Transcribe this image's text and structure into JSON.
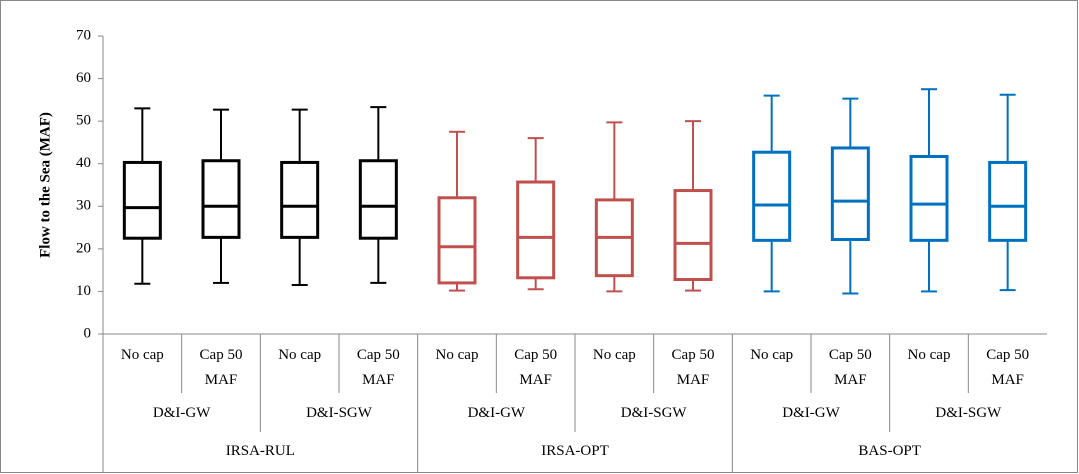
{
  "chart_data": {
    "type": "box",
    "y_label": "Flow to the Sea (MAF)",
    "ylim": [
      0,
      70
    ],
    "yticks": [
      0,
      10,
      20,
      30,
      40,
      50,
      60,
      70
    ],
    "categories": [
      "No cap",
      "Cap 50 MAF",
      "No cap",
      "Cap 50 MAF",
      "No cap",
      "Cap 50 MAF",
      "No cap",
      "Cap 50 MAF",
      "No cap",
      "Cap 50 MAF",
      "No cap",
      "Cap 50 MAF"
    ],
    "groups": [
      "D&I-GW",
      "D&I-SGW",
      "D&I-GW",
      "D&I-SGW",
      "D&I-GW",
      "D&I-SGW"
    ],
    "supergroups": [
      "IRSA-RUL",
      "IRSA-OPT",
      "BAS-OPT"
    ],
    "boxes": [
      {
        "min": 11.8,
        "q1": 22.5,
        "median": 29.7,
        "q3": 40.3,
        "max": 53,
        "color": "#000000"
      },
      {
        "min": 12,
        "q1": 22.7,
        "median": 30,
        "q3": 40.7,
        "max": 52.7,
        "color": "#000000"
      },
      {
        "min": 11.5,
        "q1": 22.7,
        "median": 30,
        "q3": 40.3,
        "max": 52.7,
        "color": "#000000"
      },
      {
        "min": 12,
        "q1": 22.5,
        "median": 30,
        "q3": 40.7,
        "max": 53.3,
        "color": "#000000"
      },
      {
        "min": 10.2,
        "q1": 12,
        "median": 20.5,
        "q3": 32,
        "max": 47.5,
        "color": "#c0504d"
      },
      {
        "min": 10.5,
        "q1": 13.2,
        "median": 22.7,
        "q3": 35.7,
        "max": 46,
        "color": "#c0504d"
      },
      {
        "min": 10,
        "q1": 13.7,
        "median": 22.7,
        "q3": 31.5,
        "max": 49.7,
        "color": "#c0504d"
      },
      {
        "min": 10.2,
        "q1": 12.8,
        "median": 21.3,
        "q3": 33.7,
        "max": 50,
        "color": "#c0504d"
      },
      {
        "min": 10,
        "q1": 22,
        "median": 30.3,
        "q3": 42.7,
        "max": 56,
        "color": "#0070c0"
      },
      {
        "min": 9.5,
        "q1": 22.2,
        "median": 31.2,
        "q3": 43.7,
        "max": 55.3,
        "color": "#0070c0"
      },
      {
        "min": 10,
        "q1": 22,
        "median": 30.5,
        "q3": 41.7,
        "max": 57.5,
        "color": "#0070c0"
      },
      {
        "min": 10.3,
        "q1": 22,
        "median": 30,
        "q3": 40.3,
        "max": 56.2,
        "color": "#0070c0"
      }
    ]
  }
}
